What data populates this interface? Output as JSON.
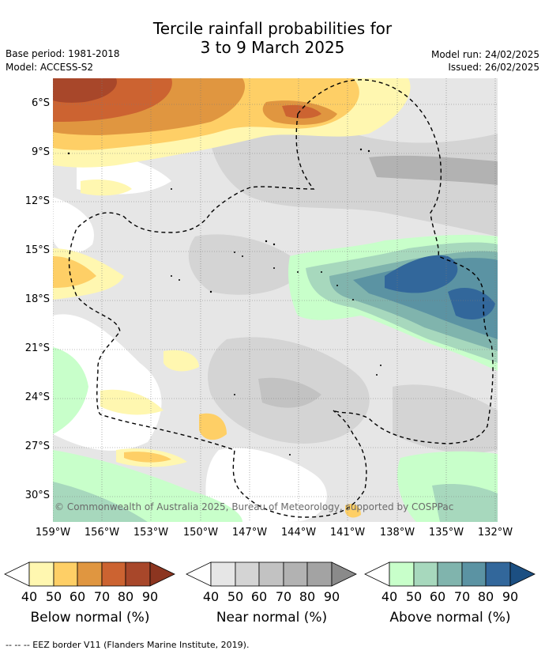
{
  "title": {
    "line1": "Tercile rainfall probabilities for",
    "line2": "3 to 9 March 2025"
  },
  "meta": {
    "base_period": "Base period: 1981-2018",
    "model": "Model: ACCESS-S2",
    "model_run": "Model run: 24/02/2025",
    "issued": "Issued: 26/02/2025"
  },
  "map": {
    "lat_ticks": [
      "6°S",
      "9°S",
      "12°S",
      "15°S",
      "18°S",
      "21°S",
      "24°S",
      "27°S",
      "30°S"
    ],
    "lon_ticks": [
      "159°W",
      "156°W",
      "153°W",
      "150°W",
      "147°W",
      "144°W",
      "141°W",
      "138°W",
      "135°W",
      "132°W"
    ],
    "lat_range": [
      -31.5,
      -4.5
    ],
    "lon_range": [
      -159,
      -132
    ],
    "copyright": "© Commonwealth of Australia 2025, Bureau of Meteorology, supported by COSPPac",
    "grid": true,
    "eez_border": "dashed"
  },
  "colorbars": [
    {
      "id": "below",
      "title": "Below normal (%)",
      "labels": [
        "40",
        "50",
        "60",
        "70",
        "80",
        "90"
      ],
      "colors": [
        "#fff7b0",
        "#fecf66",
        "#e09640",
        "#cc6331",
        "#a8472a",
        "#8c3520"
      ]
    },
    {
      "id": "near",
      "title": "Near normal (%)",
      "labels": [
        "40",
        "50",
        "60",
        "70",
        "80",
        "90"
      ],
      "colors": [
        "#e6e6e6",
        "#d4d4d4",
        "#c2c2c2",
        "#b2b2b2",
        "#a3a3a3",
        "#8a8a8a"
      ]
    },
    {
      "id": "above",
      "title": "Above normal (%)",
      "labels": [
        "40",
        "50",
        "60",
        "70",
        "80",
        "90"
      ],
      "colors": [
        "#c8ffca",
        "#a7d8bd",
        "#80b4ad",
        "#5b93a3",
        "#32679b",
        "#1c4f82"
      ]
    }
  ],
  "footer": "--  --  -- EEZ border V11 (Flanders Marine Institute, 2019)."
}
